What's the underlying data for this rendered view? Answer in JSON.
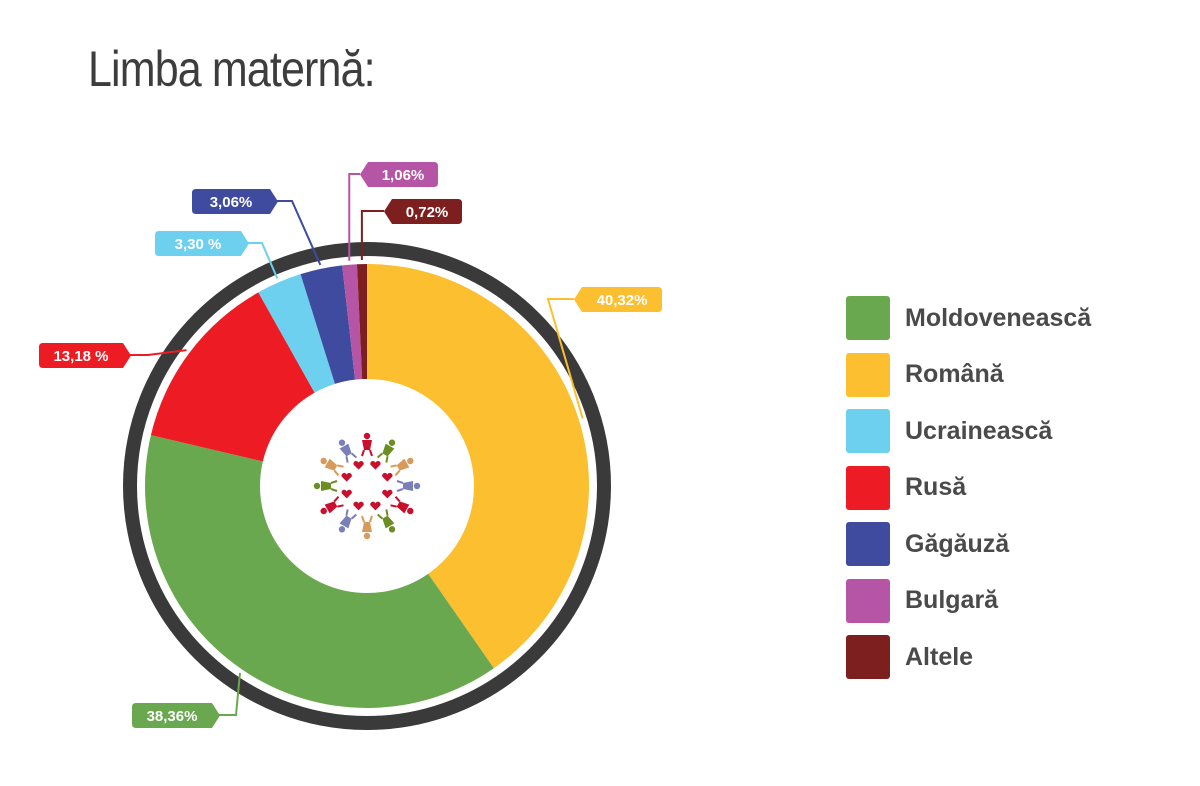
{
  "title": "Limba maternă:",
  "chart_data": {
    "type": "pie",
    "variant": "donut",
    "title": "Limba maternă:",
    "legend_position": "right",
    "categories": [
      "Moldovenească",
      "Română",
      "Ucrainească",
      "Rusă",
      "Găgăuză",
      "Bulgară",
      "Altele"
    ],
    "values": [
      38.36,
      40.32,
      3.3,
      13.18,
      3.06,
      1.06,
      0.72
    ],
    "value_labels": [
      "38,36%",
      "40,32%",
      "3,30 %",
      "13,18 %",
      "3,06%",
      "1,06%",
      "0,72%"
    ],
    "colors": [
      "#6aa84f",
      "#fbbf2f",
      "#6dd0ee",
      "#ed1c24",
      "#3f4b9e",
      "#b655a6",
      "#7d1f1f"
    ],
    "draw_order": [
      "Română",
      "Moldovenească",
      "Rusă",
      "Ucrainească",
      "Găgăuză",
      "Bulgară",
      "Altele"
    ],
    "start_angle": "top",
    "direction": "clockwise",
    "outer_ring_color": "#3a3a3a",
    "center_image": "ring-of-dancing-figures"
  }
}
